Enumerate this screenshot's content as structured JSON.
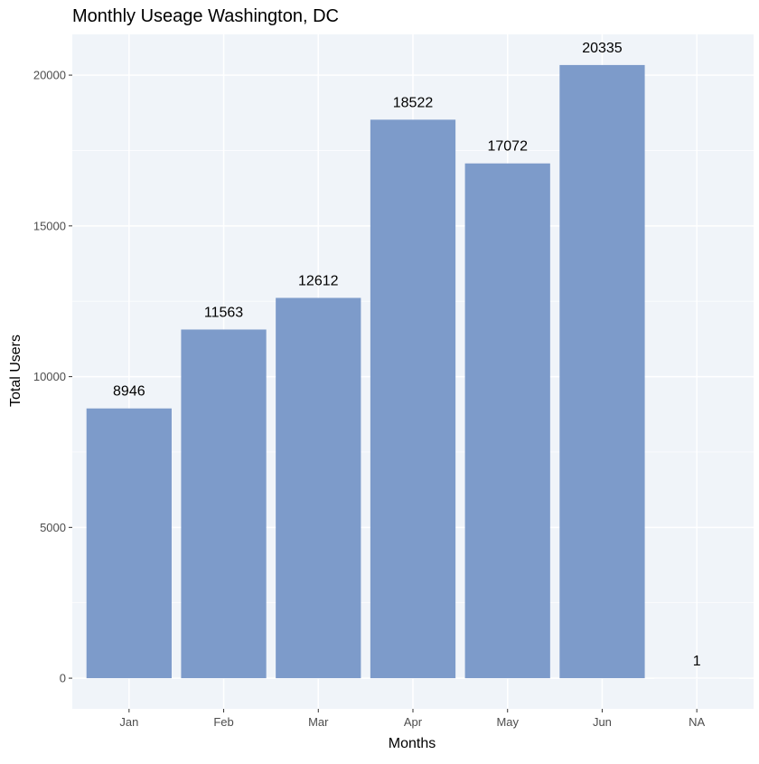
{
  "chart_data": {
    "type": "bar",
    "title": "Monthly Useage Washington, DC",
    "xlabel": "Months",
    "ylabel": "Total Users",
    "categories": [
      "Jan",
      "Feb",
      "Mar",
      "Apr",
      "May",
      "Jun",
      "NA"
    ],
    "values": [
      8946,
      11563,
      12612,
      18522,
      17072,
      20335,
      1
    ],
    "data_labels": [
      "8946",
      "11563",
      "12612",
      "18522",
      "17072",
      "20335",
      "1"
    ],
    "yticks": [
      0,
      5000,
      10000,
      15000,
      20000
    ],
    "ytick_labels": [
      "0",
      "5000",
      "10000",
      "15000",
      "20000"
    ],
    "ylim": [
      -1017,
      21352
    ],
    "grid": true,
    "legend": "none",
    "colors": {
      "bar": "#7d9bca",
      "panel": "#f0f4f9",
      "grid": "#ffffff",
      "text": "#000000",
      "tick_text": "#4d4d4d"
    }
  }
}
